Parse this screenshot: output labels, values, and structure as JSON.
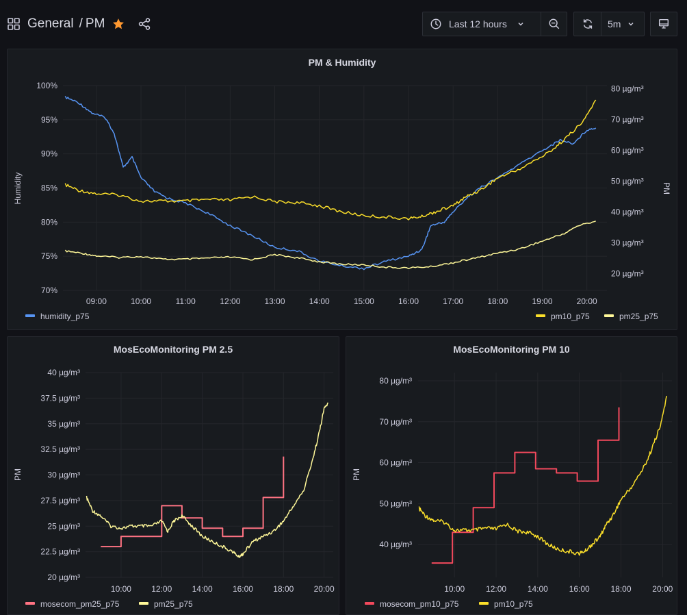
{
  "breadcrumb": {
    "folder": "General",
    "separator": "/",
    "dashboard": "PM"
  },
  "toolbar": {
    "time_range": "Last 12 hours",
    "refresh_interval": "5m"
  },
  "colors": {
    "humidity": "#5794f2",
    "pm10": "#fade2a",
    "pm25": "#fff899",
    "mosecom_pm25": "#ff7383",
    "mosecom_pm10": "#f2495c",
    "star": "#ff9830"
  },
  "panels": [
    {
      "title": "PM & Humidity",
      "legend_left": [
        {
          "name": "humidity_p75"
        }
      ],
      "legend_right": [
        {
          "name": "pm10_p75"
        },
        {
          "name": "pm25_p75"
        }
      ]
    },
    {
      "title": "MosEcoMonitoring PM 2.5",
      "legend": [
        {
          "name": "mosecom_pm25_p75"
        },
        {
          "name": "pm25_p75"
        }
      ]
    },
    {
      "title": "MosEcoMonitoring PM 10",
      "legend": [
        {
          "name": "mosecom_pm10_p75"
        },
        {
          "name": "pm10_p75"
        }
      ]
    }
  ],
  "chart_data": [
    {
      "type": "line",
      "title": "PM & Humidity",
      "x_ticks": [
        "09:00",
        "10:00",
        "11:00",
        "12:00",
        "13:00",
        "14:00",
        "15:00",
        "16:00",
        "17:00",
        "18:00",
        "19:00",
        "20:00"
      ],
      "x_range": [
        8.25,
        20.45
      ],
      "y_left": {
        "label": "Humidity",
        "range": [
          70,
          100
        ],
        "ticks": [
          "70%",
          "75%",
          "80%",
          "85%",
          "90%",
          "95%",
          "100%"
        ],
        "tick_values": [
          70,
          75,
          80,
          85,
          90,
          95,
          100
        ]
      },
      "y_right": {
        "label": "PM",
        "range": [
          14.5,
          81
        ],
        "ticks": [
          "20 µg/m³",
          "30 µg/m³",
          "40 µg/m³",
          "50 µg/m³",
          "60 µg/m³",
          "70 µg/m³",
          "80 µg/m³"
        ],
        "tick_values": [
          20,
          30,
          40,
          50,
          60,
          70,
          80
        ]
      },
      "series": [
        {
          "name": "humidity_p75",
          "axis": "left",
          "x": [
            8.3,
            8.6,
            8.9,
            9.2,
            9.4,
            9.6,
            9.8,
            10.0,
            10.3,
            10.6,
            11.0,
            11.5,
            12.0,
            12.5,
            13.0,
            13.5,
            14.0,
            14.5,
            15.0,
            15.5,
            16.0,
            16.3,
            16.5,
            16.8,
            17.0,
            17.3,
            17.6,
            18.0,
            18.5,
            19.0,
            19.4,
            19.7,
            20.0,
            20.2
          ],
          "y": [
            98.3,
            97.5,
            96.0,
            95.3,
            93.0,
            88.0,
            89.5,
            86.5,
            84.5,
            83.5,
            82.8,
            81.3,
            79.5,
            78.0,
            76.3,
            75.8,
            74.3,
            73.6,
            73.2,
            74.3,
            75.0,
            76.0,
            79.5,
            80.0,
            81.5,
            83.5,
            85.0,
            86.5,
            88.5,
            90.5,
            92.0,
            91.5,
            93.5,
            93.8
          ]
        },
        {
          "name": "pm10_p75",
          "axis": "right",
          "x": [
            8.3,
            8.6,
            9.0,
            9.5,
            10.0,
            10.5,
            11.0,
            11.5,
            12.0,
            12.5,
            13.0,
            13.5,
            14.0,
            14.5,
            15.0,
            15.5,
            16.0,
            16.3,
            16.6,
            17.0,
            17.3,
            17.6,
            18.0,
            18.5,
            19.0,
            19.3,
            19.6,
            19.9,
            20.2
          ],
          "y": [
            48.8,
            47.0,
            45.9,
            45.5,
            43.5,
            43.5,
            43.5,
            44.0,
            43.8,
            45.0,
            43.3,
            43.0,
            42.0,
            40.0,
            38.8,
            38.3,
            37.8,
            38.5,
            40.0,
            42.0,
            45.0,
            47.0,
            51.0,
            54.0,
            58.0,
            61.0,
            65.0,
            69.0,
            76.3
          ]
        },
        {
          "name": "pm25_p75",
          "axis": "right",
          "x": [
            8.3,
            8.7,
            9.0,
            9.5,
            10.0,
            10.5,
            11.0,
            11.5,
            12.0,
            12.5,
            13.0,
            13.5,
            14.0,
            14.5,
            15.0,
            15.5,
            16.0,
            16.5,
            17.0,
            17.5,
            18.0,
            18.5,
            19.0,
            19.5,
            19.8,
            20.2
          ],
          "y": [
            27.3,
            26.5,
            25.7,
            25.2,
            25.5,
            24.6,
            24.6,
            25.0,
            25.3,
            24.5,
            26.1,
            25.1,
            23.8,
            23.0,
            22.8,
            22.0,
            21.8,
            22.2,
            23.5,
            25.0,
            26.6,
            28.0,
            30.5,
            33.0,
            35.5,
            37.0
          ]
        }
      ]
    },
    {
      "type": "line",
      "title": "MosEcoMonitoring PM 2.5",
      "x_ticks": [
        "10:00",
        "12:00",
        "14:00",
        "16:00",
        "18:00",
        "20:00"
      ],
      "x_range": [
        8.25,
        20.45
      ],
      "y": {
        "label": "PM",
        "range": [
          20,
          40
        ],
        "ticks": [
          "20 µg/m³",
          "22.5 µg/m³",
          "25 µg/m³",
          "27.5 µg/m³",
          "30 µg/m³",
          "32.5 µg/m³",
          "35 µg/m³",
          "37.5 µg/m³",
          "40 µg/m³"
        ],
        "tick_values": [
          20,
          22.5,
          25,
          27.5,
          30,
          32.5,
          35,
          37.5,
          40
        ]
      },
      "series": [
        {
          "name": "mosecom_pm25_p75",
          "step": true,
          "x": [
            9.0,
            10.0,
            11.0,
            12.0,
            13.0,
            14.0,
            15.0,
            16.0,
            17.0,
            18.0
          ],
          "y": [
            23.0,
            24.0,
            24.0,
            27.0,
            25.8,
            24.8,
            24.0,
            24.8,
            27.8,
            31.8
          ]
        },
        {
          "name": "pm25_p75",
          "x": [
            8.3,
            8.6,
            9.0,
            9.5,
            10.0,
            10.5,
            11.0,
            11.5,
            12.0,
            12.3,
            12.6,
            13.0,
            13.5,
            14.0,
            14.5,
            15.0,
            15.5,
            15.8,
            16.0,
            16.5,
            17.0,
            17.5,
            18.0,
            18.5,
            19.0,
            19.5,
            19.8,
            20.0,
            20.2
          ],
          "y": [
            27.8,
            26.5,
            26.0,
            25.0,
            24.8,
            25.0,
            25.0,
            25.0,
            25.5,
            24.5,
            25.5,
            26.0,
            25.0,
            24.0,
            23.5,
            23.0,
            22.5,
            22.0,
            22.3,
            23.5,
            24.0,
            24.5,
            25.5,
            27.0,
            28.5,
            32.0,
            34.5,
            36.5,
            37.0
          ]
        }
      ]
    },
    {
      "type": "line",
      "title": "MosEcoMonitoring PM 10",
      "x_ticks": [
        "10:00",
        "12:00",
        "14:00",
        "16:00",
        "18:00",
        "20:00"
      ],
      "x_range": [
        8.25,
        20.45
      ],
      "y": {
        "label": "PM",
        "range": [
          32,
          82
        ],
        "ticks": [
          "40 µg/m³",
          "50 µg/m³",
          "60 µg/m³",
          "70 µg/m³",
          "80 µg/m³"
        ],
        "tick_values": [
          40,
          50,
          60,
          70,
          80
        ]
      },
      "series": [
        {
          "name": "mosecom_pm10_p75",
          "step": true,
          "x": [
            8.9,
            9.9,
            10.9,
            11.9,
            12.9,
            13.9,
            14.9,
            15.9,
            16.9,
            17.9
          ],
          "y": [
            35.5,
            43.0,
            49.0,
            57.5,
            62.5,
            58.5,
            57.5,
            55.5,
            65.5,
            73.5
          ]
        },
        {
          "name": "pm10_p75",
          "x": [
            8.3,
            8.6,
            9.0,
            9.5,
            10.0,
            10.5,
            11.0,
            11.5,
            12.0,
            12.5,
            13.0,
            13.5,
            14.0,
            14.5,
            15.0,
            15.5,
            16.0,
            16.3,
            16.6,
            17.0,
            17.3,
            17.6,
            18.0,
            18.5,
            19.0,
            19.3,
            19.6,
            19.9,
            20.2
          ],
          "y": [
            48.8,
            47.0,
            45.9,
            45.5,
            43.5,
            43.5,
            43.5,
            44.0,
            43.8,
            45.0,
            43.3,
            43.0,
            42.0,
            40.0,
            38.8,
            38.3,
            37.8,
            38.5,
            40.0,
            42.0,
            45.0,
            47.0,
            51.0,
            54.0,
            58.0,
            61.0,
            65.0,
            69.0,
            76.3
          ]
        }
      ]
    }
  ]
}
